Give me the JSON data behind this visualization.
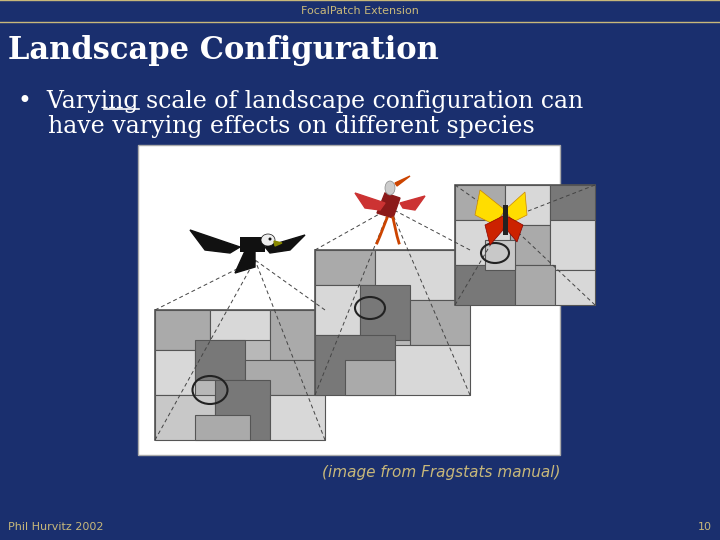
{
  "bg_color": "#1a2f6e",
  "header_text": "FocalPatch Extension",
  "header_color": "#c8b87a",
  "header_border_color": "#c8b87a",
  "title_text": "Landscape Configuration",
  "title_color": "#ffffff",
  "title_fontsize": 22,
  "bullet_line1": "•  Varying scale of landscape configuration can",
  "bullet_line2": "    have varying effects on different species",
  "bullet_color": "#ffffff",
  "bullet_fontsize": 17,
  "caption_text": "(image from Fragstats manual)",
  "caption_color": "#c8b87a",
  "caption_fontsize": 11,
  "footer_text": "Phil Hurvitz 2002",
  "footer_color": "#c8b87a",
  "footer_fontsize": 8,
  "page_num": "10",
  "page_num_color": "#c8b87a",
  "page_num_fontsize": 8,
  "image_bg": "#ffffff",
  "image_border": "#aaaaaa"
}
